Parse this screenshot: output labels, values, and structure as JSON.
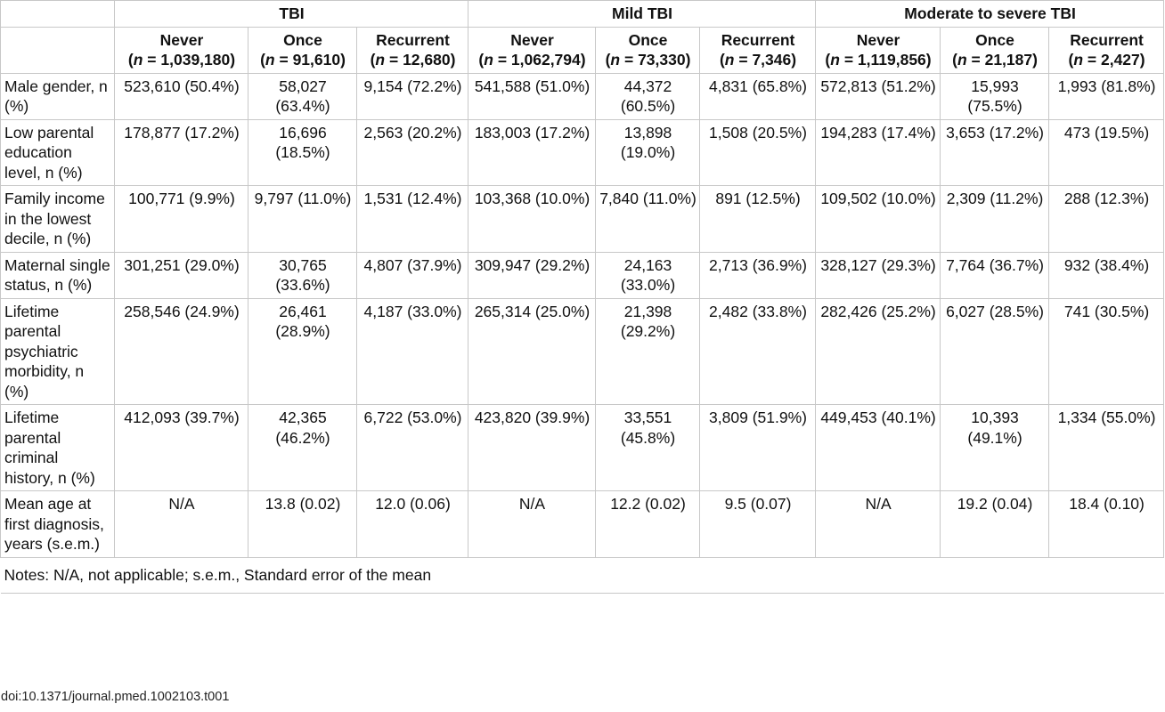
{
  "groups": [
    "TBI",
    "Mild TBI",
    "Moderate to severe TBI"
  ],
  "subheaders": [
    {
      "label": "Never",
      "n": "1,039,180"
    },
    {
      "label": "Once",
      "n": "91,610"
    },
    {
      "label": "Recurrent",
      "n": "12,680"
    },
    {
      "label": "Never",
      "n": "1,062,794"
    },
    {
      "label": "Once",
      "n": "73,330"
    },
    {
      "label": "Recurrent",
      "n": "7,346"
    },
    {
      "label": "Never",
      "n": "1,119,856"
    },
    {
      "label": "Once",
      "n": "21,187"
    },
    {
      "label": "Recurrent",
      "n": "2,427"
    }
  ],
  "n_prefix": "n",
  "n_equals": " = ",
  "rows": [
    {
      "label": "Male gender, n (%)",
      "cells": [
        "523,610 (50.4%)",
        "58,027 (63.4%)",
        "9,154 (72.2%)",
        "541,588 (51.0%)",
        "44,372 (60.5%)",
        "4,831 (65.8%)",
        "572,813 (51.2%)",
        "15,993 (75.5%)",
        "1,993 (81.8%)"
      ]
    },
    {
      "label": "Low parental education level, n (%)",
      "cells": [
        "178,877 (17.2%)",
        "16,696 (18.5%)",
        "2,563 (20.2%)",
        "183,003 (17.2%)",
        "13,898 (19.0%)",
        "1,508 (20.5%)",
        "194,283 (17.4%)",
        "3,653 (17.2%)",
        "473 (19.5%)"
      ]
    },
    {
      "label": "Family income in the lowest decile, n (%)",
      "cells": [
        "100,771 (9.9%)",
        "9,797 (11.0%)",
        "1,531 (12.4%)",
        "103,368 (10.0%)",
        "7,840 (11.0%)",
        "891 (12.5%)",
        "109,502 (10.0%)",
        "2,309 (11.2%)",
        "288 (12.3%)"
      ]
    },
    {
      "label": "Maternal single status, n (%)",
      "cells": [
        "301,251 (29.0%)",
        "30,765 (33.6%)",
        "4,807 (37.9%)",
        "309,947 (29.2%)",
        "24,163 (33.0%)",
        "2,713 (36.9%)",
        "328,127 (29.3%)",
        "7,764 (36.7%)",
        "932 (38.4%)"
      ]
    },
    {
      "label": "Lifetime parental psychiatric morbidity, n (%)",
      "cells": [
        "258,546 (24.9%)",
        "26,461 (28.9%)",
        "4,187 (33.0%)",
        "265,314 (25.0%)",
        "21,398 (29.2%)",
        "2,482 (33.8%)",
        "282,426 (25.2%)",
        "6,027 (28.5%)",
        "741 (30.5%)"
      ]
    },
    {
      "label": "Lifetime parental criminal history, n (%)",
      "cells": [
        "412,093 (39.7%)",
        "42,365 (46.2%)",
        "6,722 (53.0%)",
        "423,820 (39.9%)",
        "33,551 (45.8%)",
        "3,809 (51.9%)",
        "449,453 (40.1%)",
        "10,393 (49.1%)",
        "1,334 (55.0%)"
      ]
    },
    {
      "label": "Mean age at first diagnosis, years (s.e.m.)",
      "cells": [
        "N/A",
        "13.8 (0.02)",
        "12.0 (0.06)",
        "N/A",
        "12.2 (0.02)",
        "9.5 (0.07)",
        "N/A",
        "19.2 (0.04)",
        "18.4 (0.10)"
      ]
    }
  ],
  "notes": "Notes: N/A, not applicable; s.e.m., Standard error of the mean",
  "doi": "doi:10.1371/journal.pmed.1002103.t001"
}
